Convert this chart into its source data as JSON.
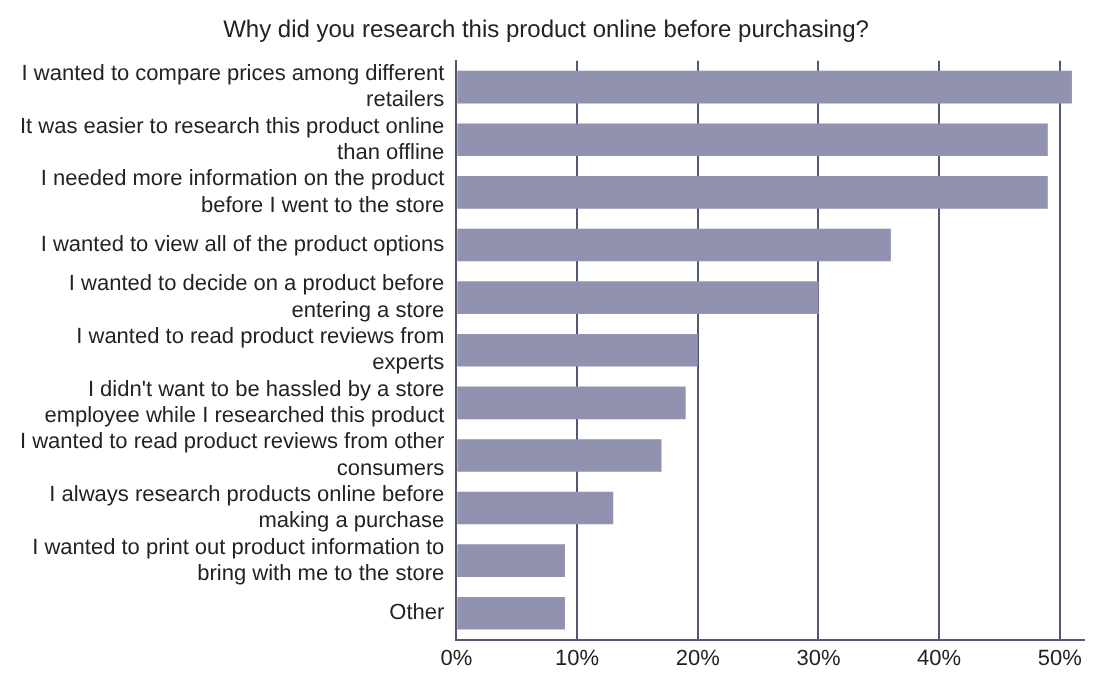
{
  "chart_data": {
    "type": "bar",
    "orientation": "horizontal",
    "title": "Why did you research this product online before purchasing?",
    "categories": [
      "I wanted to compare prices among different retailers",
      "It was easier to research this product online than offline",
      "I needed more information on the product before I went to the store",
      "I wanted to view all of the product options",
      "I wanted to decide on a product before entering a store",
      "I wanted to read product reviews from experts",
      "I didn't want to be hassled by a store employee while I researched this product",
      "I wanted to read product reviews from other consumers",
      "I always research products online before making a purchase",
      "I wanted to print out product information to bring with me to the store",
      "Other"
    ],
    "values": [
      51,
      49,
      49,
      36,
      30,
      20,
      19,
      17,
      13,
      9,
      9
    ],
    "color": "#9191b0",
    "xlim": [
      0,
      52
    ],
    "xticks": [
      {
        "value": 0,
        "label": "0%"
      },
      {
        "value": 10,
        "label": "10%"
      },
      {
        "value": 20,
        "label": "20%"
      },
      {
        "value": 30,
        "label": "30%"
      },
      {
        "value": 40,
        "label": "40%"
      },
      {
        "value": 50,
        "label": "50%"
      }
    ],
    "grid": "x",
    "legend": false
  }
}
